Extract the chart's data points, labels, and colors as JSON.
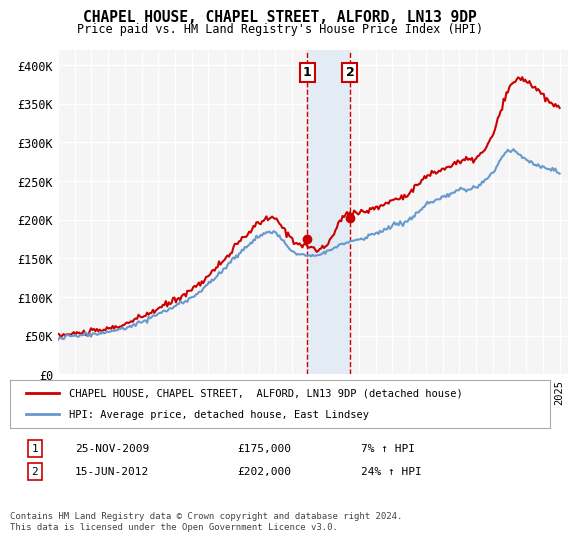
{
  "title": "CHAPEL HOUSE, CHAPEL STREET, ALFORD, LN13 9DP",
  "subtitle": "Price paid vs. HM Land Registry's House Price Index (HPI)",
  "background_color": "#ffffff",
  "plot_bg_color": "#f5f5f5",
  "grid_color": "#ffffff",
  "red_line_color": "#cc0000",
  "blue_line_color": "#6699cc",
  "highlight_bg_color": "#dce9f5",
  "highlight_border_color": "#cc0000",
  "ylim": [
    0,
    420000
  ],
  "yticks": [
    0,
    50000,
    100000,
    150000,
    200000,
    250000,
    300000,
    350000,
    400000
  ],
  "ytick_labels": [
    "£0",
    "£50K",
    "£100K",
    "£150K",
    "£200K",
    "£250K",
    "£300K",
    "£350K",
    "£400K"
  ],
  "purchase1_x": 2009.9,
  "purchase1_y": 175000,
  "purchase2_x": 2012.46,
  "purchase2_y": 202000,
  "legend_label_red": "CHAPEL HOUSE, CHAPEL STREET,  ALFORD, LN13 9DP (detached house)",
  "legend_label_blue": "HPI: Average price, detached house, East Lindsey",
  "table_row1": "1    25-NOV-2009         £175,000         7% ↑ HPI",
  "table_row2": "2    15-JUN-2012          £202,000        24% ↑ HPI",
  "footer": "Contains HM Land Registry data © Crown copyright and database right 2024.\nThis data is licensed under the Open Government Licence v3.0.",
  "xmin": 1995,
  "xmax": 2025.5
}
